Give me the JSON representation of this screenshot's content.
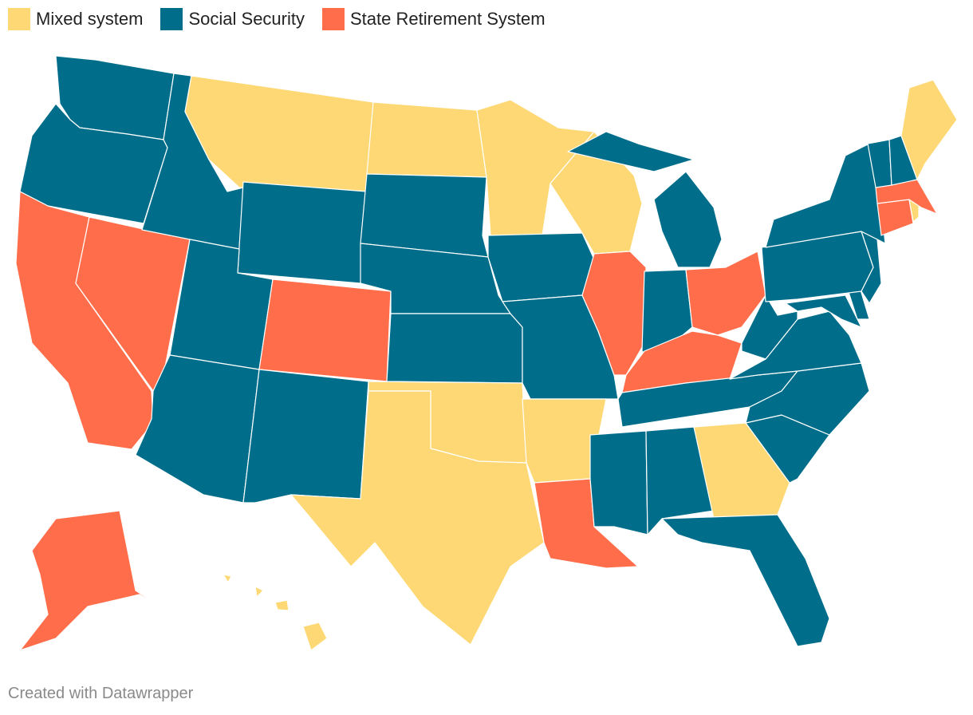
{
  "legend": [
    {
      "key": "mixed",
      "label": "Mixed system",
      "color": "#fdd874"
    },
    {
      "key": "ss",
      "label": "Social Security",
      "color": "#006e8a"
    },
    {
      "key": "srs",
      "label": "State Retirement System",
      "color": "#ff6d4a"
    }
  ],
  "footer": "Created with Datawrapper",
  "states": [
    {
      "name": "Washington",
      "cat": "ss"
    },
    {
      "name": "Oregon",
      "cat": "ss"
    },
    {
      "name": "California",
      "cat": "srs"
    },
    {
      "name": "Nevada",
      "cat": "srs"
    },
    {
      "name": "Idaho",
      "cat": "ss"
    },
    {
      "name": "Montana",
      "cat": "mixed"
    },
    {
      "name": "Wyoming",
      "cat": "ss"
    },
    {
      "name": "Utah",
      "cat": "ss"
    },
    {
      "name": "Arizona",
      "cat": "ss"
    },
    {
      "name": "Colorado",
      "cat": "srs"
    },
    {
      "name": "New Mexico",
      "cat": "ss"
    },
    {
      "name": "North Dakota",
      "cat": "mixed"
    },
    {
      "name": "South Dakota",
      "cat": "ss"
    },
    {
      "name": "Nebraska",
      "cat": "ss"
    },
    {
      "name": "Kansas",
      "cat": "ss"
    },
    {
      "name": "Oklahoma",
      "cat": "mixed"
    },
    {
      "name": "Texas",
      "cat": "mixed"
    },
    {
      "name": "Minnesota",
      "cat": "mixed"
    },
    {
      "name": "Iowa",
      "cat": "ss"
    },
    {
      "name": "Missouri",
      "cat": "ss"
    },
    {
      "name": "Arkansas",
      "cat": "mixed"
    },
    {
      "name": "Louisiana",
      "cat": "srs"
    },
    {
      "name": "Wisconsin",
      "cat": "mixed"
    },
    {
      "name": "Illinois",
      "cat": "srs"
    },
    {
      "name": "Michigan",
      "cat": "ss"
    },
    {
      "name": "Indiana",
      "cat": "ss"
    },
    {
      "name": "Ohio",
      "cat": "srs"
    },
    {
      "name": "Kentucky",
      "cat": "srs"
    },
    {
      "name": "Tennessee",
      "cat": "ss"
    },
    {
      "name": "Mississippi",
      "cat": "ss"
    },
    {
      "name": "Alabama",
      "cat": "ss"
    },
    {
      "name": "Georgia",
      "cat": "mixed"
    },
    {
      "name": "Florida",
      "cat": "ss"
    },
    {
      "name": "South Carolina",
      "cat": "ss"
    },
    {
      "name": "North Carolina",
      "cat": "ss"
    },
    {
      "name": "Virginia",
      "cat": "ss"
    },
    {
      "name": "West Virginia",
      "cat": "ss"
    },
    {
      "name": "Maryland",
      "cat": "ss"
    },
    {
      "name": "Delaware",
      "cat": "ss"
    },
    {
      "name": "Pennsylvania",
      "cat": "ss"
    },
    {
      "name": "New Jersey",
      "cat": "ss"
    },
    {
      "name": "New York",
      "cat": "ss"
    },
    {
      "name": "Connecticut",
      "cat": "srs"
    },
    {
      "name": "Rhode Island",
      "cat": "mixed"
    },
    {
      "name": "Massachusetts",
      "cat": "srs"
    },
    {
      "name": "Vermont",
      "cat": "ss"
    },
    {
      "name": "New Hampshire",
      "cat": "ss"
    },
    {
      "name": "Maine",
      "cat": "mixed"
    },
    {
      "name": "Alaska",
      "cat": "srs"
    },
    {
      "name": "Hawaii",
      "cat": "mixed"
    }
  ]
}
